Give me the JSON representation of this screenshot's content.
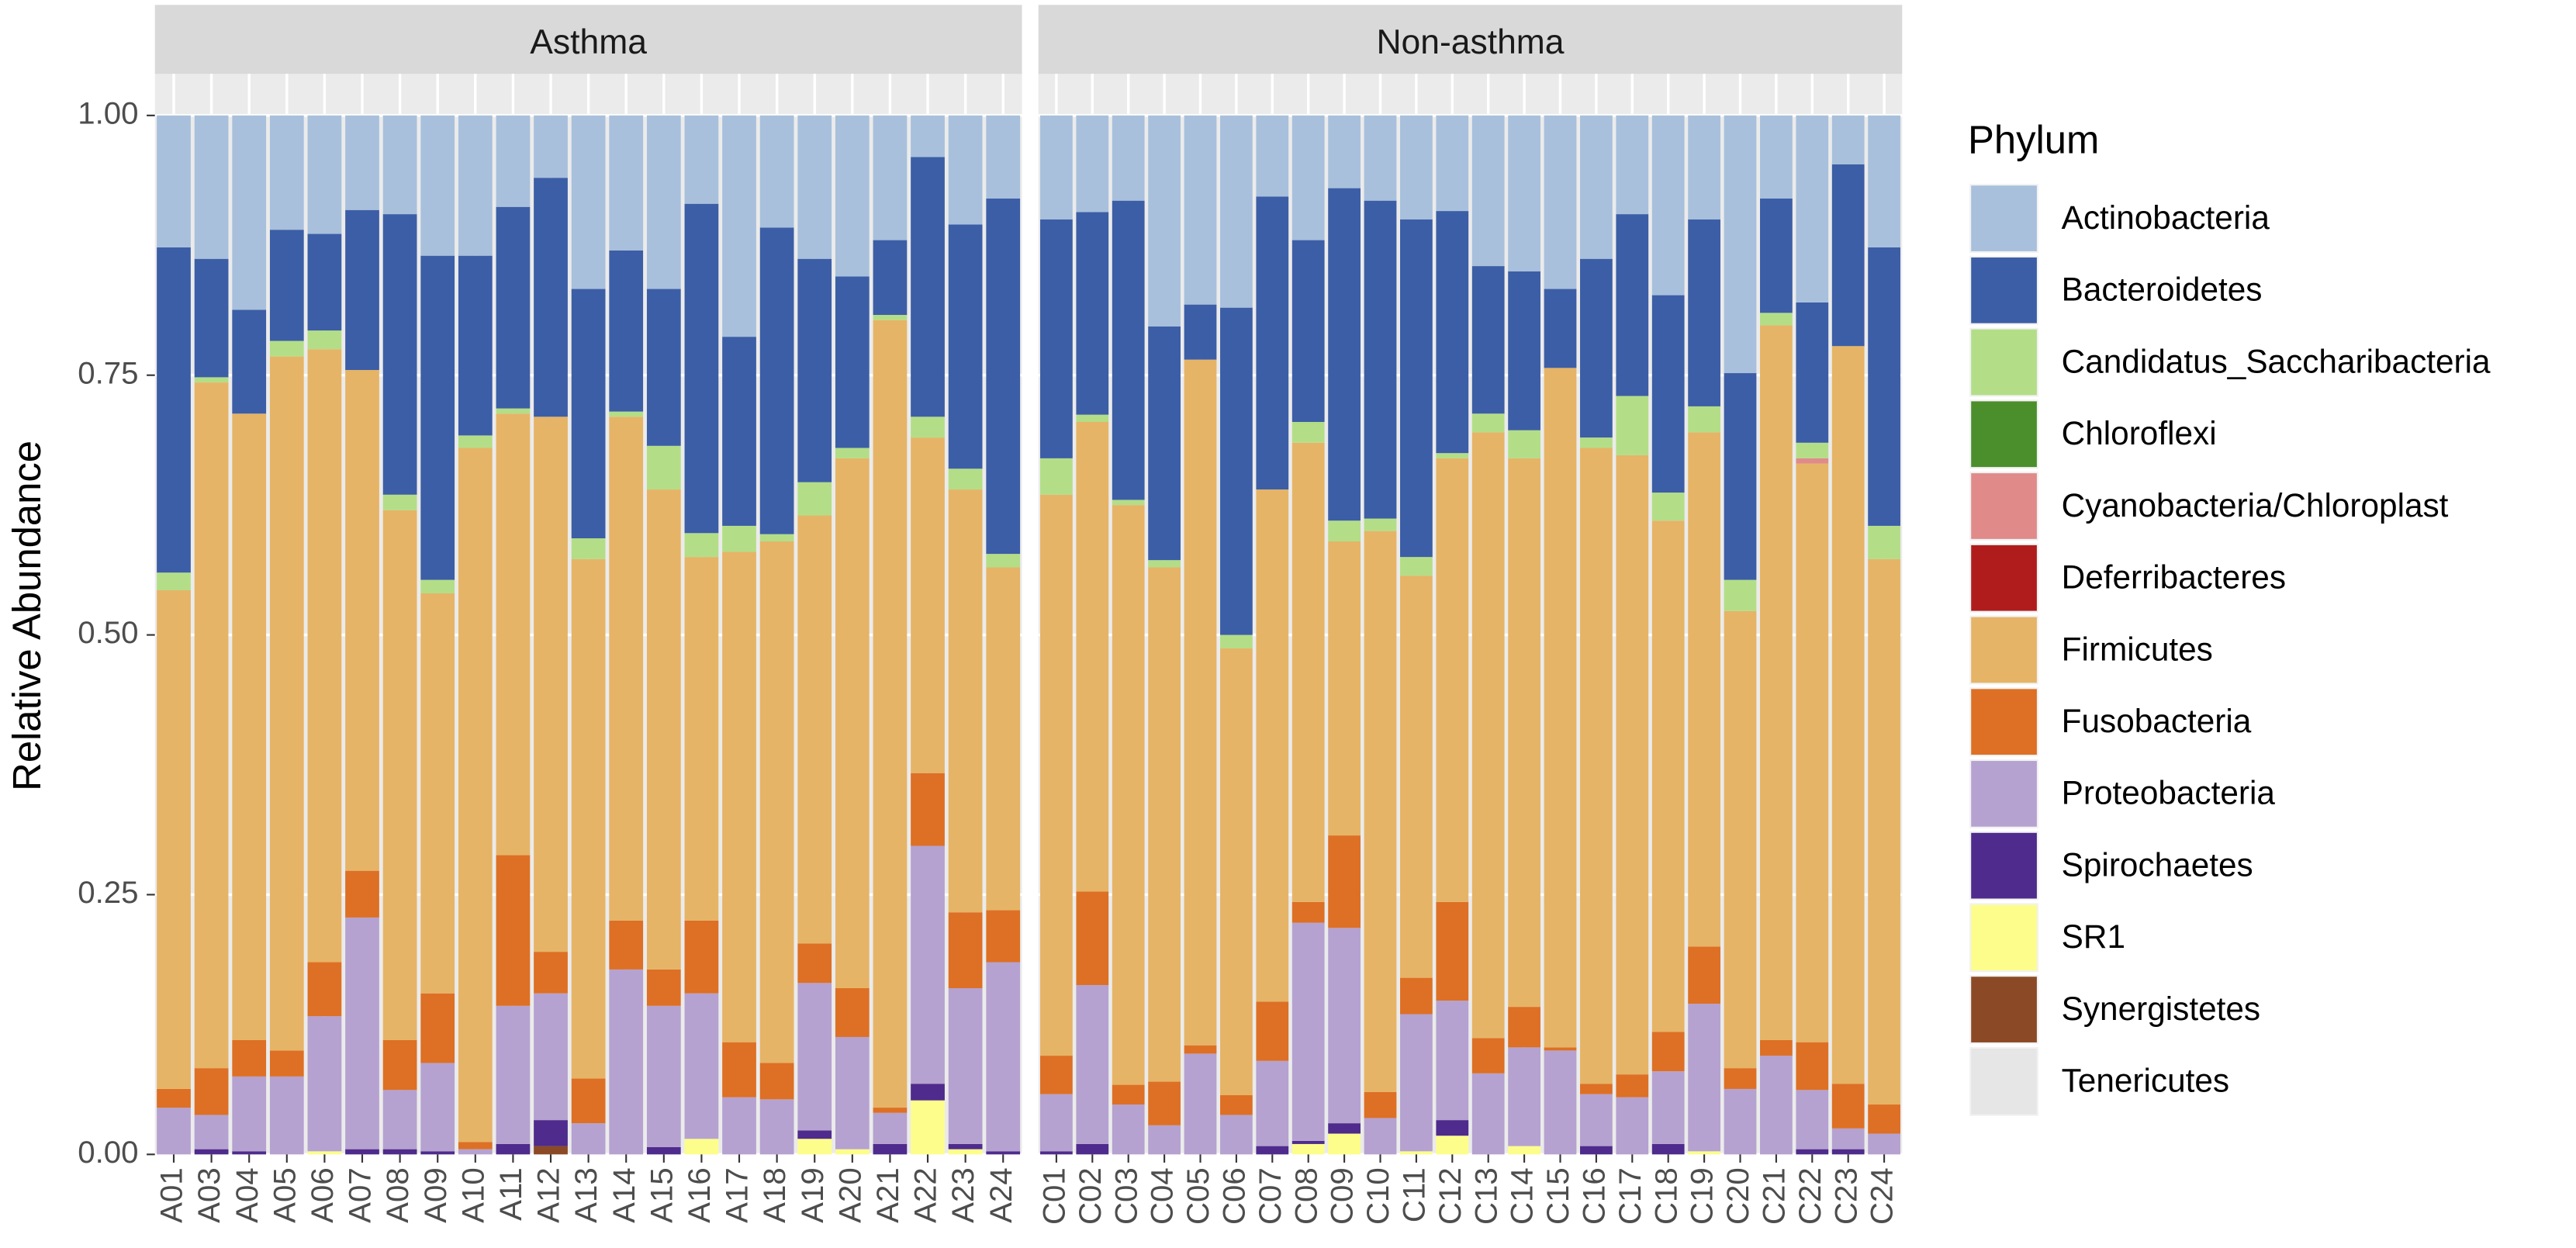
{
  "chart_data": {
    "type": "bar",
    "stacked": true,
    "ylabel": "Relative Abundance",
    "legend_title": "Phylum",
    "legend_position": "right",
    "grid": true,
    "ylim": [
      0,
      1.04
    ],
    "yticks": [
      {
        "value": 0,
        "label": "0.00"
      },
      {
        "value": 0.25,
        "label": "0.25"
      },
      {
        "value": 0.5,
        "label": "0.50"
      },
      {
        "value": 0.75,
        "label": "0.75"
      },
      {
        "value": 1,
        "label": "1.00"
      }
    ],
    "legend": [
      {
        "name": "Actinobacteria",
        "color": "#a8c0dc"
      },
      {
        "name": "Bacteroidetes",
        "color": "#3c5ea6"
      },
      {
        "name": "Candidatus_Saccharibacteria",
        "color": "#b3de87"
      },
      {
        "name": "Chloroflexi",
        "color": "#4b8f2c"
      },
      {
        "name": "Cyanobacteria/Chloroplast",
        "color": "#e08a8a"
      },
      {
        "name": "Deferribacteres",
        "color": "#b01c1c"
      },
      {
        "name": "Firmicutes",
        "color": "#e6b467"
      },
      {
        "name": "Fusobacteria",
        "color": "#dd7024"
      },
      {
        "name": "Proteobacteria",
        "color": "#b5a2d0"
      },
      {
        "name": "Spirochaetes",
        "color": "#4e2b8c"
      },
      {
        "name": "SR1",
        "color": "#fdfd8c"
      },
      {
        "name": "Synergistetes",
        "color": "#8b4a25"
      },
      {
        "name": "Tenericutes",
        "color": "#e6e6e6"
      }
    ],
    "facets": [
      {
        "title": "Asthma",
        "categories": [
          "A01",
          "A03",
          "A04",
          "A05",
          "A06",
          "A07",
          "A08",
          "A09",
          "A10",
          "A11",
          "A12",
          "A13",
          "A14",
          "A15",
          "A16",
          "A17",
          "A18",
          "A19",
          "A20",
          "A21",
          "A22",
          "A23",
          "A24"
        ],
        "series": [
          {
            "values": [
              0.127,
              0.138,
              0.187,
              0.11,
              0.114,
              0.091,
              0.095,
              0.135,
              0.135,
              0.088,
              0.06,
              0.167,
              0.13,
              0.167,
              0.085,
              0.213,
              0.108,
              0.138,
              0.155,
              0.12,
              0.04,
              0.105,
              0.08
            ]
          },
          {
            "values": [
              0.313,
              0.114,
              0.1,
              0.107,
              0.093,
              0.154,
              0.27,
              0.312,
              0.173,
              0.194,
              0.23,
              0.24,
              0.155,
              0.151,
              0.317,
              0.182,
              0.295,
              0.215,
              0.165,
              0.072,
              0.25,
              0.235,
              0.342
            ]
          },
          {
            "values": [
              0.017,
              0.005,
              0,
              0.015,
              0.018,
              0,
              0.015,
              0.013,
              0.012,
              0.005,
              0,
              0.02,
              0.005,
              0.042,
              0.023,
              0.025,
              0.007,
              0.032,
              0.01,
              0.005,
              0.02,
              0.02,
              0.013
            ]
          },
          {
            "values": [
              0,
              0,
              0,
              0,
              0,
              0,
              0,
              0,
              0,
              0,
              0,
              0,
              0,
              0,
              0,
              0,
              0,
              0,
              0,
              0,
              0,
              0,
              0
            ]
          },
          {
            "values": [
              0,
              0,
              0,
              0,
              0,
              0,
              0,
              0,
              0,
              0,
              0,
              0,
              0,
              0,
              0,
              0,
              0,
              0,
              0,
              0,
              0,
              0,
              0
            ]
          },
          {
            "values": [
              0,
              0,
              0,
              0,
              0,
              0,
              0,
              0,
              0,
              0,
              0,
              0,
              0,
              0,
              0,
              0,
              0,
              0,
              0,
              0,
              0,
              0,
              0
            ]
          },
          {
            "values": [
              0.48,
              0.66,
              0.603,
              0.668,
              0.59,
              0.482,
              0.51,
              0.385,
              0.668,
              0.425,
              0.515,
              0.5,
              0.485,
              0.462,
              0.35,
              0.472,
              0.502,
              0.412,
              0.51,
              0.758,
              0.323,
              0.407,
              0.33
            ]
          },
          {
            "values": [
              0.018,
              0.045,
              0.035,
              0.025,
              0.052,
              0.045,
              0.048,
              0.067,
              0.007,
              0.145,
              0.04,
              0.043,
              0.047,
              0.035,
              0.07,
              0.053,
              0.035,
              0.038,
              0.047,
              0.005,
              0.07,
              0.073,
              0.05
            ]
          },
          {
            "values": [
              0.045,
              0.033,
              0.072,
              0.075,
              0.13,
              0.223,
              0.057,
              0.085,
              0.005,
              0.133,
              0.122,
              0.03,
              0.178,
              0.136,
              0.14,
              0.055,
              0.053,
              0.142,
              0.108,
              0.03,
              0.229,
              0.15,
              0.182
            ]
          },
          {
            "values": [
              0,
              0.005,
              0.003,
              0,
              0,
              0.005,
              0.005,
              0.003,
              0,
              0.01,
              0.025,
              0,
              0,
              0.007,
              0,
              0,
              0,
              0.008,
              0,
              0.01,
              0.016,
              0.005,
              0.003
            ]
          },
          {
            "values": [
              0,
              0,
              0,
              0,
              0.003,
              0,
              0,
              0,
              0,
              0,
              0,
              0,
              0,
              0,
              0.015,
              0,
              0,
              0.015,
              0.005,
              0,
              0.052,
              0.005,
              0
            ]
          },
          {
            "values": [
              0,
              0,
              0,
              0,
              0,
              0,
              0,
              0,
              0,
              0,
              0.008,
              0,
              0,
              0,
              0,
              0,
              0,
              0,
              0,
              0,
              0,
              0,
              0
            ]
          },
          {
            "values": [
              0,
              0,
              0,
              0,
              0,
              0,
              0,
              0,
              0,
              0,
              0,
              0,
              0,
              0,
              0,
              0,
              0,
              0,
              0,
              0,
              0,
              0,
              0
            ]
          }
        ]
      },
      {
        "title": "Non-asthma",
        "categories": [
          "C01",
          "C02",
          "C03",
          "C04",
          "C05",
          "C06",
          "C07",
          "C08",
          "C09",
          "C10",
          "C11",
          "C12",
          "C13",
          "C14",
          "C15",
          "C16",
          "C17",
          "C18",
          "C19",
          "C20",
          "C21",
          "C22",
          "C23",
          "C24"
        ],
        "series": [
          {
            "values": [
              0.1,
              0.093,
              0.082,
              0.203,
              0.182,
              0.185,
              0.078,
              0.12,
              0.07,
              0.082,
              0.1,
              0.092,
              0.145,
              0.15,
              0.167,
              0.138,
              0.095,
              0.173,
              0.1,
              0.248,
              0.08,
              0.18,
              0.047,
              0.127
            ]
          },
          {
            "values": [
              0.23,
              0.195,
              0.288,
              0.225,
              0.053,
              0.315,
              0.282,
              0.175,
              0.32,
              0.306,
              0.325,
              0.233,
              0.142,
              0.153,
              0.076,
              0.172,
              0.175,
              0.19,
              0.18,
              0.199,
              0.11,
              0.135,
              0.175,
              0.268
            ]
          },
          {
            "values": [
              0.035,
              0.007,
              0.005,
              0.007,
              0,
              0.013,
              0,
              0.02,
              0.02,
              0.012,
              0.018,
              0.005,
              0.018,
              0.027,
              0,
              0.01,
              0.057,
              0.027,
              0.025,
              0.03,
              0.012,
              0.015,
              0,
              0.032
            ]
          },
          {
            "values": [
              0,
              0,
              0,
              0,
              0,
              0,
              0,
              0,
              0,
              0,
              0,
              0,
              0,
              0,
              0,
              0,
              0,
              0,
              0,
              0,
              0,
              0,
              0,
              0
            ]
          },
          {
            "values": [
              0,
              0,
              0,
              0,
              0,
              0,
              0,
              0,
              0,
              0,
              0,
              0,
              0,
              0,
              0,
              0,
              0,
              0,
              0,
              0,
              0,
              0.005,
              0,
              0
            ]
          },
          {
            "values": [
              0,
              0,
              0,
              0,
              0,
              0,
              0,
              0,
              0,
              0,
              0,
              0,
              0,
              0,
              0,
              0,
              0,
              0,
              0,
              0,
              0,
              0,
              0,
              0
            ]
          },
          {
            "values": [
              0.54,
              0.452,
              0.558,
              0.495,
              0.66,
              0.43,
              0.493,
              0.442,
              0.283,
              0.54,
              0.387,
              0.427,
              0.583,
              0.528,
              0.654,
              0.612,
              0.596,
              0.492,
              0.495,
              0.44,
              0.688,
              0.557,
              0.71,
              0.525
            ]
          },
          {
            "values": [
              0.037,
              0.09,
              0.019,
              0.042,
              0.008,
              0.019,
              0.057,
              0.02,
              0.089,
              0.025,
              0.035,
              0.095,
              0.034,
              0.039,
              0.003,
              0.01,
              0.022,
              0.038,
              0.055,
              0.02,
              0.015,
              0.046,
              0.043,
              0.028
            ]
          },
          {
            "values": [
              0.055,
              0.153,
              0.048,
              0.028,
              0.097,
              0.038,
              0.082,
              0.21,
              0.188,
              0.035,
              0.132,
              0.115,
              0.078,
              0.095,
              0.1,
              0.05,
              0.055,
              0.07,
              0.142,
              0.063,
              0.095,
              0.057,
              0.02,
              0.02
            ]
          },
          {
            "values": [
              0.003,
              0.01,
              0,
              0,
              0,
              0,
              0.008,
              0.003,
              0.01,
              0,
              0,
              0.015,
              0,
              0,
              0,
              0.008,
              0,
              0.01,
              0,
              0,
              0,
              0.005,
              0.005,
              0
            ]
          },
          {
            "values": [
              0,
              0,
              0,
              0,
              0,
              0,
              0,
              0.01,
              0.02,
              0,
              0.003,
              0.018,
              0,
              0.008,
              0,
              0,
              0,
              0,
              0.003,
              0,
              0,
              0,
              0,
              0
            ]
          },
          {
            "values": [
              0,
              0,
              0,
              0,
              0,
              0,
              0,
              0,
              0,
              0,
              0,
              0,
              0,
              0,
              0,
              0,
              0,
              0,
              0,
              0,
              0,
              0,
              0,
              0
            ]
          },
          {
            "values": [
              0,
              0,
              0,
              0,
              0,
              0,
              0,
              0,
              0,
              0,
              0,
              0,
              0,
              0,
              0,
              0,
              0,
              0,
              0,
              0,
              0,
              0,
              0,
              0
            ]
          }
        ]
      }
    ]
  }
}
